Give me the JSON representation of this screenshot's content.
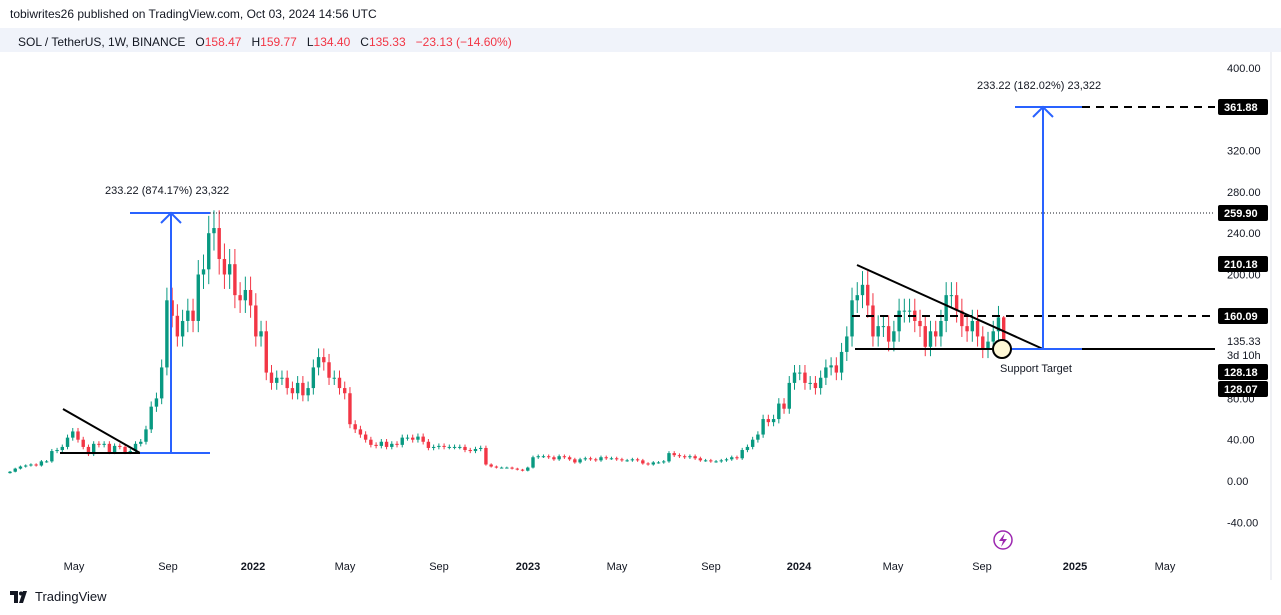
{
  "header": {
    "published": "tobiwrites26 published on TradingView.com, Oct 03, 2024 14:56 UTC",
    "symbol": "SOL / TetherUS, 1W, BINANCE",
    "o_label": "O",
    "o": "158.47",
    "h_label": "H",
    "h": "159.77",
    "l_label": "L",
    "l": "134.40",
    "c_label": "C",
    "c": "135.33",
    "change": "−23.13 (−14.60%)"
  },
  "footer": {
    "brand": "TradingView"
  },
  "colors": {
    "up": "#089981",
    "down": "#f23645",
    "drawing_blue": "#2962ff",
    "label_bg": "#000000",
    "alert_icon": "#9c27b0"
  },
  "annotations": {
    "measure_left": "233.22 (874.17%) 23,322",
    "measure_right": "233.22 (182.02%) 23,322",
    "support": "Support Target"
  },
  "chart_data": {
    "type": "candlestick",
    "interval": "1W",
    "first_week": "2021-02-08",
    "weekly_close": [
      9,
      12,
      14,
      15,
      16,
      15,
      19,
      19,
      29,
      30,
      33,
      42,
      48,
      40,
      33,
      26,
      36,
      35,
      36,
      28,
      34,
      33,
      28,
      29,
      36,
      38,
      50,
      72,
      80,
      110,
      175,
      160,
      140,
      155,
      165,
      155,
      200,
      205,
      240,
      245,
      215,
      200,
      210,
      180,
      175,
      185,
      170,
      140,
      145,
      105,
      95,
      100,
      100,
      90,
      85,
      95,
      83,
      90,
      110,
      120,
      115,
      100,
      100,
      90,
      85,
      55,
      50,
      45,
      40,
      35,
      34,
      38,
      33,
      36,
      35,
      42,
      42,
      40,
      43,
      38,
      32,
      33,
      34,
      33,
      33,
      33,
      33,
      30,
      29,
      31,
      32,
      16,
      14,
      13,
      13,
      13,
      12,
      11,
      10,
      13,
      23,
      24,
      24,
      23,
      21,
      24,
      23,
      21,
      18,
      21,
      22,
      21,
      20,
      23,
      22,
      22,
      21,
      20,
      20,
      21,
      20,
      17,
      16,
      18,
      18,
      19,
      27,
      25,
      24,
      23,
      24,
      22,
      20,
      20,
      19,
      19,
      20,
      21,
      23,
      22,
      30,
      33,
      40,
      45,
      60,
      57,
      60,
      75,
      70,
      95,
      105,
      105,
      95,
      95,
      90,
      100,
      110,
      112,
      105,
      125,
      140,
      175,
      180,
      190,
      170,
      140,
      150,
      150,
      135,
      145,
      165,
      165,
      165,
      155,
      150,
      130,
      145,
      140,
      155,
      180,
      180,
      165,
      150,
      145,
      155,
      140,
      128,
      135,
      145,
      158.47,
      135.33
    ],
    "last_bar": {
      "open": 158.47,
      "high": 159.77,
      "low": 134.4,
      "close": 135.33
    },
    "x_tick_labels": [
      "May",
      "Sep",
      "2022",
      "May",
      "Sep",
      "2023",
      "May",
      "Sep",
      "2024",
      "May",
      "Sep",
      "2025",
      "May"
    ],
    "y_tick_labels": [
      "400.00",
      "320.00",
      "280.00",
      "240.00",
      "200.00",
      "80.00",
      "40.00",
      "0.00",
      "-40.00"
    ],
    "y_ticks": [
      400,
      320,
      280,
      240,
      200,
      80,
      40,
      0,
      -40
    ],
    "price_labels": [
      "361.88",
      "259.90",
      "210.18",
      "160.09",
      "128.18",
      "128.07"
    ],
    "last_price": "135.33",
    "countdown": "3d 10h",
    "levels": {
      "target": 361.88,
      "ath": 259.9,
      "resistance": 160.09,
      "support": 128.18
    },
    "ylim": [
      -60,
      420
    ],
    "grid": false
  }
}
